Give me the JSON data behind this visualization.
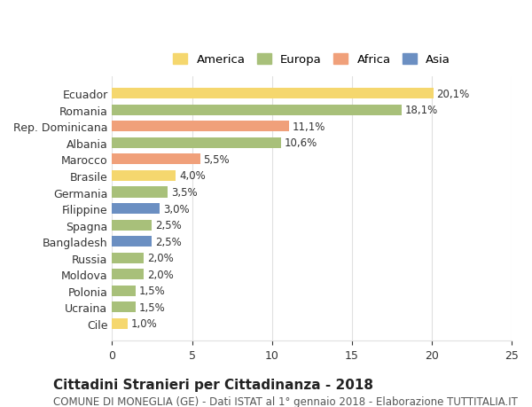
{
  "categories": [
    "Ecuador",
    "Romania",
    "Rep. Dominicana",
    "Albania",
    "Marocco",
    "Brasile",
    "Germania",
    "Filippine",
    "Spagna",
    "Bangladesh",
    "Russia",
    "Moldova",
    "Polonia",
    "Ucraina",
    "Cile"
  ],
  "values": [
    20.1,
    18.1,
    11.1,
    10.6,
    5.5,
    4.0,
    3.5,
    3.0,
    2.5,
    2.5,
    2.0,
    2.0,
    1.5,
    1.5,
    1.0
  ],
  "labels": [
    "20,1%",
    "18,1%",
    "11,1%",
    "10,6%",
    "5,5%",
    "4,0%",
    "3,5%",
    "3,0%",
    "2,5%",
    "2,5%",
    "2,0%",
    "2,0%",
    "1,5%",
    "1,5%",
    "1,0%"
  ],
  "bar_colors": [
    "#f5d76e",
    "#a8c07a",
    "#f0a07a",
    "#a8c07a",
    "#f0a07a",
    "#f5d76e",
    "#a8c07a",
    "#6b8fc2",
    "#a8c07a",
    "#6b8fc2",
    "#a8c07a",
    "#a8c07a",
    "#a8c07a",
    "#a8c07a",
    "#f5d76e"
  ],
  "legend": [
    {
      "label": "America",
      "color": "#f5d76e"
    },
    {
      "label": "Europa",
      "color": "#a8c07a"
    },
    {
      "label": "Africa",
      "color": "#f0a07a"
    },
    {
      "label": "Asia",
      "color": "#6b8fc2"
    }
  ],
  "xlim": [
    0,
    25
  ],
  "xticks": [
    0,
    5,
    10,
    15,
    20,
    25
  ],
  "title": "Cittadini Stranieri per Cittadinanza - 2018",
  "subtitle": "COMUNE DI MONEGLIA (GE) - Dati ISTAT al 1° gennaio 2018 - Elaborazione TUTTITALIA.IT",
  "title_fontsize": 11,
  "subtitle_fontsize": 8.5,
  "label_fontsize": 8.5,
  "tick_fontsize": 9,
  "legend_fontsize": 9.5,
  "background_color": "#ffffff",
  "grid_color": "#e0e0e0",
  "bar_height": 0.65
}
